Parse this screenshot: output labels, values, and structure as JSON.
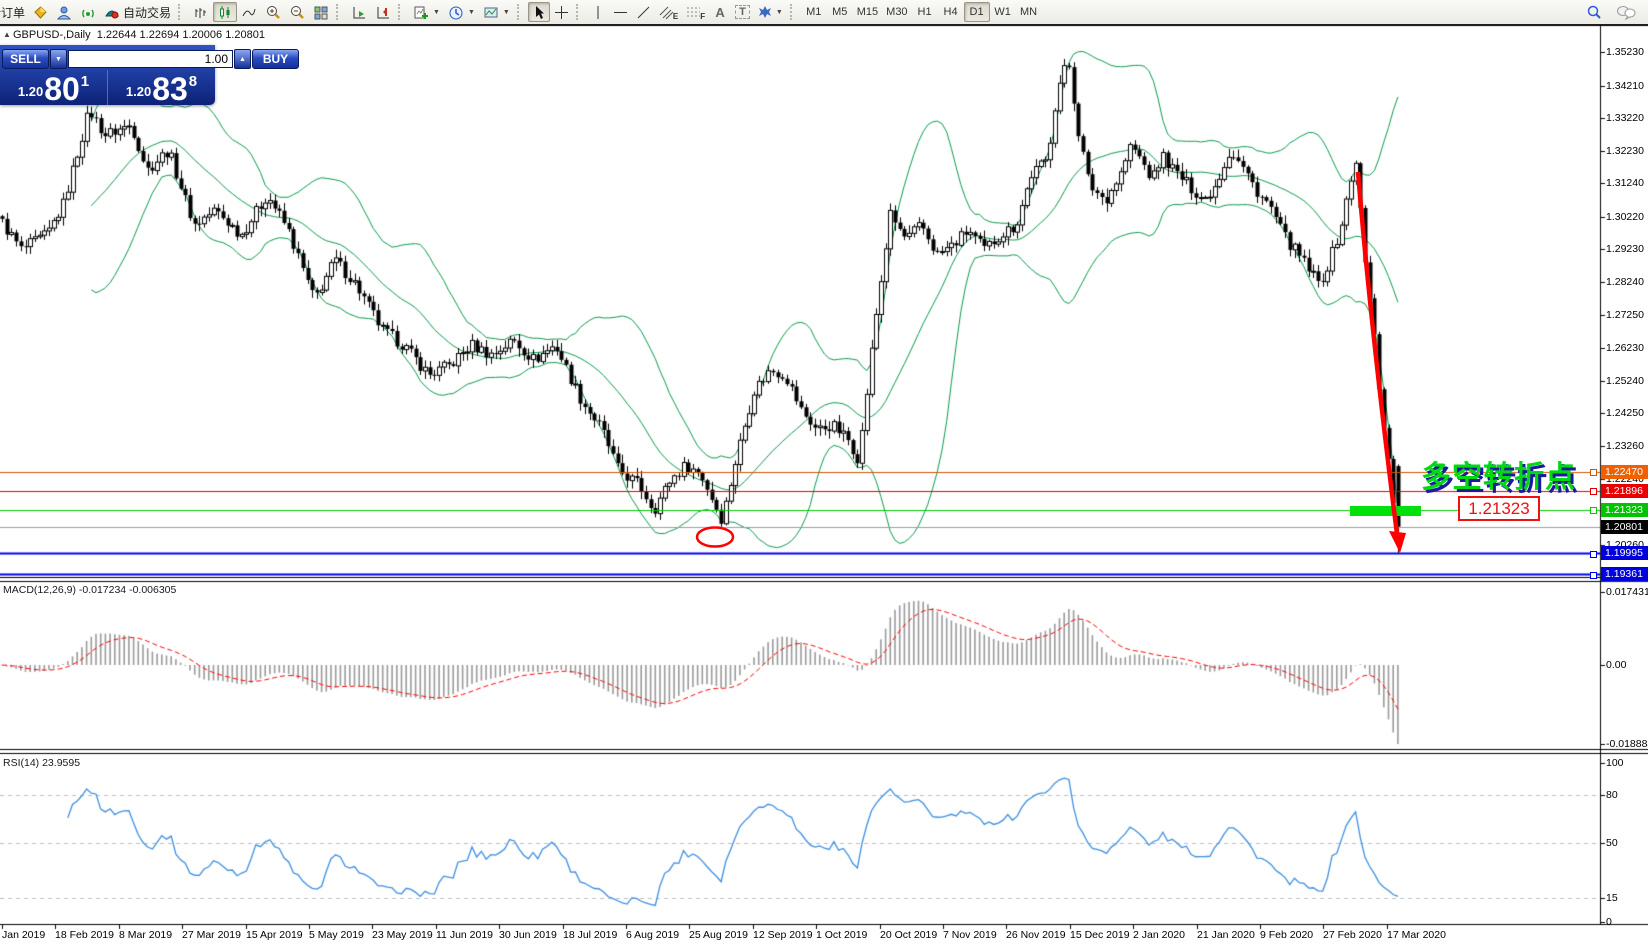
{
  "toolbar": {
    "new_order": "新订单",
    "autotrading": "自动交易",
    "tools": {
      "text": "A",
      "label": "T",
      "channel": "E",
      "fibo": "F"
    },
    "timeframes": [
      "M1",
      "M5",
      "M15",
      "M30",
      "H1",
      "H4",
      "D1",
      "W1",
      "MN"
    ],
    "active_timeframe": "D1"
  },
  "chart_header": {
    "collapse_icon": "▲",
    "title": "GBPUSD-,Daily  1.22644 1.22694 1.20006 1.20801"
  },
  "one_click": {
    "sell": "SELL",
    "buy": "BUY",
    "volume": "1.00",
    "spin_down": "▼",
    "spin_up": "▲",
    "bid_small": "1.20",
    "bid_big": "80",
    "bid_sup": "1",
    "ask_small": "1.20",
    "ask_big": "83",
    "ask_sup": "8"
  },
  "price_axis": {
    "ticks": [
      "1.35230",
      "1.34210",
      "1.33220",
      "1.32230",
      "1.31240",
      "1.30220",
      "1.29230",
      "1.28240",
      "1.27250",
      "1.26230",
      "1.25240",
      "1.24250",
      "1.23260",
      "1.22240",
      "1.20260",
      "1.19270"
    ]
  },
  "levels": [
    {
      "label": "1.22470",
      "price": 1.2247,
      "line_color": "#d25500",
      "badge_color": "#f06000",
      "line_width": 1,
      "handle": true
    },
    {
      "label": "1.21896",
      "price": 1.21896,
      "line_color": "#e00000",
      "badge_color": "#e80000",
      "line_width": 1,
      "handle": true
    },
    {
      "label": "1.21323",
      "price": 1.21323,
      "line_color": "#00cc00",
      "badge_color": "#00c400",
      "line_width": 1,
      "handle": true
    },
    {
      "label": "1.20801",
      "price": 1.20801,
      "line_color": "#9c9c9c",
      "badge_color": "#000000",
      "line_width": 1,
      "handle": false
    },
    {
      "label": "1.19995",
      "price": 1.19995,
      "line_color": "#0000e8",
      "badge_color": "#0000dd",
      "line_width": 2,
      "handle": true
    },
    {
      "label": "1.19361",
      "price": 1.19361,
      "line_color": "#0000e8",
      "badge_color": "#0000dd",
      "line_width": 2,
      "handle": true
    }
  ],
  "macd": {
    "label": "MACD(12,26,9) -0.017234 -0.006305",
    "axis": [
      "0.017431",
      "0.00",
      "-0.018884"
    ]
  },
  "rsi": {
    "label": "RSI(14) 23.9595",
    "axis": [
      "100",
      "80",
      "50",
      "15",
      "0"
    ],
    "dashed_levels": [
      80,
      50,
      15
    ]
  },
  "date_axis": [
    "Jan 2019",
    "18 Feb 2019",
    "8 Mar 2019",
    "27 Mar 2019",
    "15 Apr 2019",
    "5 May 2019",
    "23 May 2019",
    "11 Jun 2019",
    "30 Jun 2019",
    "18 Jul 2019",
    "6 Aug 2019",
    "25 Aug 2019",
    "12 Sep 2019",
    "1 Oct 2019",
    "20 Oct 2019",
    "7 Nov 2019",
    "26 Nov 2019",
    "15 Dec 2019",
    "2 Jan 2020",
    "21 Jan 2020",
    "9 Feb 2020",
    "27 Feb 2020",
    "17 Mar 2020"
  ],
  "annotations": {
    "turning_point_text": "多空转折点",
    "price_label": "1.21323",
    "arrow_color": "#ff0000",
    "highlight_color": "#00e00a"
  },
  "chart_data": {
    "type": "candlestick",
    "symbol": "GBPUSD-",
    "timeframe": "Daily",
    "last_candle": {
      "open": 1.22644,
      "high": 1.22694,
      "low": 1.20006,
      "close": 1.20801
    },
    "bid": 1.20801,
    "ask": 1.20838,
    "price_range_visible": [
      1.19166,
      1.3603
    ],
    "indicators": [
      {
        "name": "Bollinger Bands",
        "period": 20,
        "deviation": 2,
        "color": "#0b9a4a"
      },
      {
        "name": "MACD",
        "fast": 12,
        "slow": 26,
        "signal": 9,
        "values": [
          -0.017234,
          -0.006305
        ],
        "range": [
          -0.018884,
          0.017431
        ]
      },
      {
        "name": "RSI",
        "period": 14,
        "value": 23.9595,
        "levels": [
          15,
          50,
          80
        ]
      }
    ],
    "price_path": [
      [
        0,
        1.30124
      ],
      [
        21,
        1.29212
      ],
      [
        47,
        1.29668
      ],
      [
        63,
        1.3058
      ],
      [
        89,
        1.33467
      ],
      [
        105,
        1.32707
      ],
      [
        131,
        1.33011
      ],
      [
        147,
        1.31643
      ],
      [
        168,
        1.32251
      ],
      [
        194,
        1.29972
      ],
      [
        215,
        1.30428
      ],
      [
        241,
        1.29668
      ],
      [
        267,
        1.30884
      ],
      [
        288,
        1.2982
      ],
      [
        314,
        1.27692
      ],
      [
        335,
        1.28908
      ],
      [
        356,
        1.28148
      ],
      [
        382,
        1.2678
      ],
      [
        403,
        1.26324
      ],
      [
        429,
        1.25412
      ],
      [
        450,
        1.25716
      ],
      [
        471,
        1.26324
      ],
      [
        492,
        1.2602
      ],
      [
        513,
        1.26476
      ],
      [
        534,
        1.25868
      ],
      [
        555,
        1.26324
      ],
      [
        581,
        1.24652
      ],
      [
        602,
        1.23741
      ],
      [
        618,
        1.22525
      ],
      [
        639,
        1.22069
      ],
      [
        654,
        1.21309
      ],
      [
        670,
        1.22221
      ],
      [
        686,
        1.22677
      ],
      [
        701,
        1.22373
      ],
      [
        722,
        1.21005
      ],
      [
        738,
        1.23133
      ],
      [
        754,
        1.24956
      ],
      [
        770,
        1.25564
      ],
      [
        785,
        1.25412
      ],
      [
        801,
        1.24349
      ],
      [
        817,
        1.23741
      ],
      [
        832,
        1.23893
      ],
      [
        848,
        1.23437
      ],
      [
        859,
        1.22829
      ],
      [
        874,
        1.2678
      ],
      [
        890,
        1.30276
      ],
      [
        906,
        1.29516
      ],
      [
        921,
        1.29972
      ],
      [
        937,
        1.2906
      ],
      [
        953,
        1.29364
      ],
      [
        968,
        1.2982
      ],
      [
        984,
        1.29212
      ],
      [
        1000,
        1.29668
      ],
      [
        1016,
        1.29972
      ],
      [
        1031,
        1.31491
      ],
      [
        1047,
        1.31947
      ],
      [
        1057,
        1.34075
      ],
      [
        1068,
        1.34987
      ],
      [
        1078,
        1.32859
      ],
      [
        1089,
        1.31187
      ],
      [
        1105,
        1.30732
      ],
      [
        1120,
        1.31491
      ],
      [
        1131,
        1.32403
      ],
      [
        1141,
        1.31947
      ],
      [
        1152,
        1.31339
      ],
      [
        1162,
        1.32099
      ],
      [
        1173,
        1.31643
      ],
      [
        1188,
        1.31187
      ],
      [
        1204,
        1.30732
      ],
      [
        1215,
        1.31187
      ],
      [
        1230,
        1.32251
      ],
      [
        1241,
        1.31795
      ],
      [
        1256,
        1.31035
      ],
      [
        1272,
        1.30428
      ],
      [
        1283,
        1.29668
      ],
      [
        1298,
        1.2906
      ],
      [
        1309,
        1.28604
      ],
      [
        1319,
        1.28148
      ],
      [
        1330,
        1.28908
      ],
      [
        1340,
        1.2982
      ],
      [
        1356,
        1.32008
      ],
      [
        1364,
        1.29
      ],
      [
        1373,
        1.27
      ],
      [
        1380,
        1.248
      ],
      [
        1387,
        1.232
      ],
      [
        1396,
        1.20801
      ]
    ]
  }
}
